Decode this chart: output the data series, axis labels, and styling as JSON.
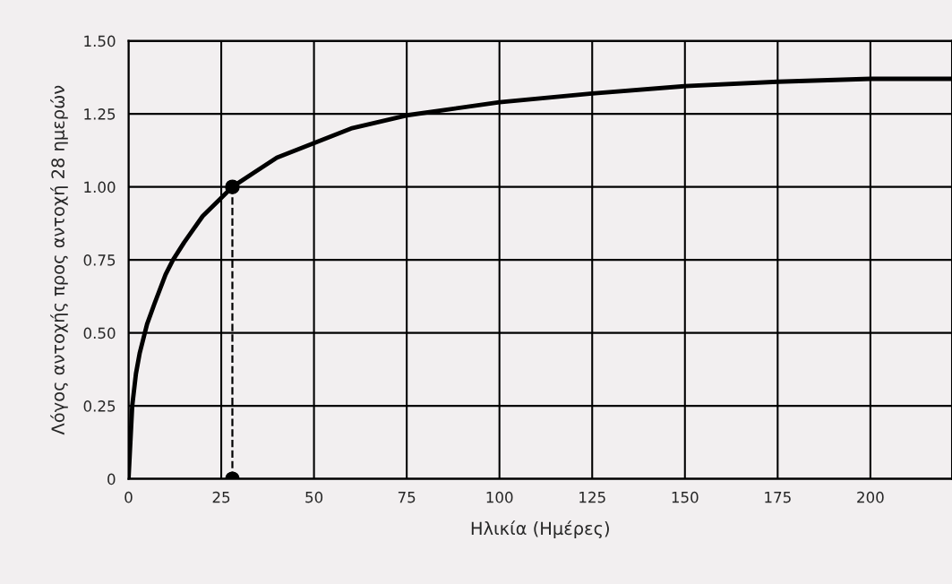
{
  "chart_data": {
    "type": "line",
    "xlabel": "Ηλικία (Ημέρες)",
    "ylabel": "Λόγος αντοχής προς αντοχή 28 ημερών",
    "xlim": [
      0,
      222
    ],
    "xticks": [
      0,
      25,
      50,
      75,
      100,
      125,
      150,
      175,
      200
    ],
    "ylim": [
      0,
      1.5
    ],
    "yticks": [
      {
        "value": 0,
        "label": "0"
      },
      {
        "value": 0.25,
        "label": "0.25"
      },
      {
        "value": 0.5,
        "label": "0.50"
      },
      {
        "value": 0.75,
        "label": "0.75"
      },
      {
        "value": 1.0,
        "label": "1.00"
      },
      {
        "value": 1.25,
        "label": "1.25"
      },
      {
        "value": 1.5,
        "label": "1.50"
      }
    ],
    "grid": true,
    "series": [
      {
        "color": "#000000",
        "x": [
          0,
          1,
          2,
          3,
          5,
          7,
          10,
          12,
          15,
          20,
          24,
          28,
          34,
          40,
          50,
          60,
          75,
          100,
          125,
          150,
          175,
          200,
          222
        ],
        "values": [
          0,
          0.25,
          0.36,
          0.43,
          0.53,
          0.6,
          0.7,
          0.75,
          0.81,
          0.9,
          0.95,
          1.0,
          1.05,
          1.1,
          1.15,
          1.2,
          1.245,
          1.29,
          1.32,
          1.345,
          1.36,
          1.37,
          1.37
        ]
      },
      {
        "color": "#000000",
        "line_style": "dashed",
        "x": [
          28,
          28
        ],
        "values": [
          0,
          1.0
        ]
      },
      {
        "type": "scatter",
        "color": "#000000",
        "marker": "circle",
        "x": [
          28,
          28
        ],
        "values": [
          1.0,
          0
        ]
      }
    ]
  }
}
